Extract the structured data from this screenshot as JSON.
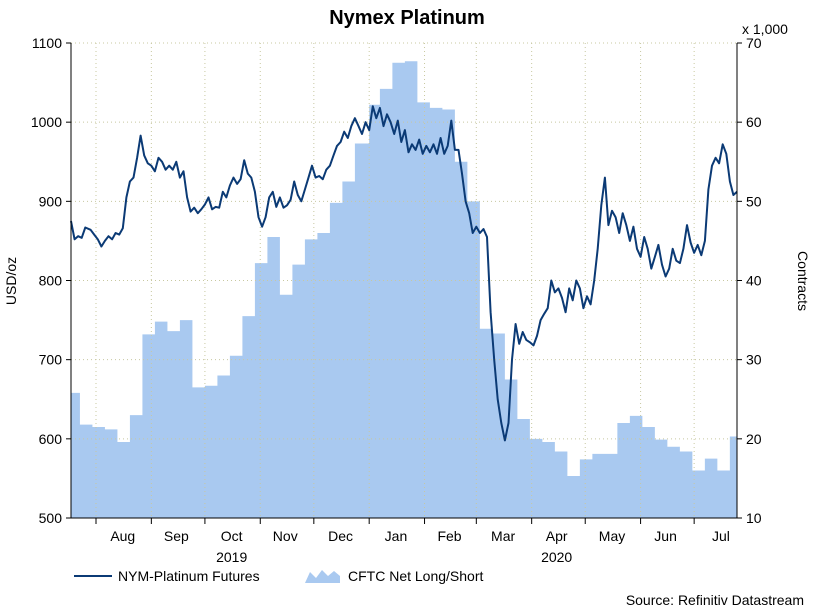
{
  "chart_data": {
    "type": "line",
    "title": "Nymex Platinum",
    "ylabel_left": "USD/oz",
    "ylabel_right": "Contracts",
    "right_multiplier": "x 1,000",
    "ylim_left": [
      500,
      1100
    ],
    "ylim_right": [
      10,
      70
    ],
    "yticks_left": [
      500,
      600,
      700,
      800,
      900,
      1000,
      1100
    ],
    "yticks_right": [
      10,
      20,
      30,
      40,
      50,
      60,
      70
    ],
    "xlim": [
      "2019-07-18",
      "2020-07-25"
    ],
    "month_labels": [
      {
        "label": "Aug",
        "date": "2019-08-16"
      },
      {
        "label": "Sep",
        "date": "2019-09-15"
      },
      {
        "label": "Oct",
        "date": "2019-10-16"
      },
      {
        "label": "Nov",
        "date": "2019-11-15"
      },
      {
        "label": "Dec",
        "date": "2019-12-16"
      },
      {
        "label": "Jan",
        "date": "2020-01-16"
      },
      {
        "label": "Feb",
        "date": "2020-02-15"
      },
      {
        "label": "Mar",
        "date": "2020-03-16"
      },
      {
        "label": "Apr",
        "date": "2020-04-15"
      },
      {
        "label": "May",
        "date": "2020-05-16"
      },
      {
        "label": "Jun",
        "date": "2020-06-15"
      },
      {
        "label": "Jul",
        "date": "2020-07-16"
      }
    ],
    "month_starts": [
      "2019-08-01",
      "2019-09-01",
      "2019-10-01",
      "2019-11-01",
      "2019-12-01",
      "2020-01-01",
      "2020-02-01",
      "2020-03-01",
      "2020-04-01",
      "2020-05-01",
      "2020-06-01",
      "2020-07-01"
    ],
    "year_labels": [
      {
        "label": "2019",
        "date": "2019-10-16"
      },
      {
        "label": "2020",
        "date": "2020-04-15"
      }
    ],
    "grid": true,
    "legend_position": "bottom-left",
    "series": [
      {
        "name": "NYM-Platinum Futures",
        "axis": "left",
        "kind": "line",
        "color": "#0b3a75",
        "points": [
          [
            "2019-07-18",
            875
          ],
          [
            "2019-07-20",
            852
          ],
          [
            "2019-07-22",
            856
          ],
          [
            "2019-07-24",
            854
          ],
          [
            "2019-07-26",
            867
          ],
          [
            "2019-07-29",
            864
          ],
          [
            "2019-07-31",
            858
          ],
          [
            "2019-08-02",
            852
          ],
          [
            "2019-08-04",
            843
          ],
          [
            "2019-08-06",
            850
          ],
          [
            "2019-08-08",
            856
          ],
          [
            "2019-08-10",
            852
          ],
          [
            "2019-08-12",
            860
          ],
          [
            "2019-08-14",
            858
          ],
          [
            "2019-08-16",
            866
          ],
          [
            "2019-08-18",
            905
          ],
          [
            "2019-08-20",
            925
          ],
          [
            "2019-08-22",
            930
          ],
          [
            "2019-08-24",
            955
          ],
          [
            "2019-08-26",
            983
          ],
          [
            "2019-08-28",
            958
          ],
          [
            "2019-08-30",
            948
          ],
          [
            "2019-09-01",
            945
          ],
          [
            "2019-09-03",
            938
          ],
          [
            "2019-09-05",
            955
          ],
          [
            "2019-09-07",
            950
          ],
          [
            "2019-09-09",
            940
          ],
          [
            "2019-09-11",
            945
          ],
          [
            "2019-09-13",
            940
          ],
          [
            "2019-09-15",
            950
          ],
          [
            "2019-09-17",
            930
          ],
          [
            "2019-09-19",
            938
          ],
          [
            "2019-09-21",
            905
          ],
          [
            "2019-09-23",
            887
          ],
          [
            "2019-09-25",
            892
          ],
          [
            "2019-09-27",
            885
          ],
          [
            "2019-09-29",
            890
          ],
          [
            "2019-10-01",
            896
          ],
          [
            "2019-10-03",
            905
          ],
          [
            "2019-10-05",
            890
          ],
          [
            "2019-10-07",
            893
          ],
          [
            "2019-10-09",
            892
          ],
          [
            "2019-10-11",
            912
          ],
          [
            "2019-10-13",
            905
          ],
          [
            "2019-10-15",
            920
          ],
          [
            "2019-10-17",
            930
          ],
          [
            "2019-10-19",
            922
          ],
          [
            "2019-10-21",
            928
          ],
          [
            "2019-10-23",
            952
          ],
          [
            "2019-10-25",
            935
          ],
          [
            "2019-10-27",
            930
          ],
          [
            "2019-10-29",
            912
          ],
          [
            "2019-10-31",
            880
          ],
          [
            "2019-11-02",
            868
          ],
          [
            "2019-11-04",
            880
          ],
          [
            "2019-11-06",
            905
          ],
          [
            "2019-11-08",
            912
          ],
          [
            "2019-11-10",
            893
          ],
          [
            "2019-11-12",
            905
          ],
          [
            "2019-11-14",
            892
          ],
          [
            "2019-11-16",
            895
          ],
          [
            "2019-11-18",
            902
          ],
          [
            "2019-11-20",
            925
          ],
          [
            "2019-11-22",
            908
          ],
          [
            "2019-11-24",
            900
          ],
          [
            "2019-11-26",
            915
          ],
          [
            "2019-11-28",
            930
          ],
          [
            "2019-11-30",
            945
          ],
          [
            "2019-12-02",
            930
          ],
          [
            "2019-12-04",
            932
          ],
          [
            "2019-12-06",
            928
          ],
          [
            "2019-12-08",
            940
          ],
          [
            "2019-12-10",
            945
          ],
          [
            "2019-12-12",
            958
          ],
          [
            "2019-12-14",
            970
          ],
          [
            "2019-12-16",
            975
          ],
          [
            "2019-12-18",
            988
          ],
          [
            "2019-12-20",
            980
          ],
          [
            "2019-12-22",
            995
          ],
          [
            "2019-12-24",
            1005
          ],
          [
            "2019-12-26",
            995
          ],
          [
            "2019-12-28",
            985
          ],
          [
            "2019-12-30",
            1000
          ],
          [
            "2020-01-01",
            990
          ],
          [
            "2020-01-03",
            1020
          ],
          [
            "2020-01-05",
            1005
          ],
          [
            "2020-01-07",
            1018
          ],
          [
            "2020-01-09",
            995
          ],
          [
            "2020-01-11",
            1010
          ],
          [
            "2020-01-13",
            1000
          ],
          [
            "2020-01-15",
            985
          ],
          [
            "2020-01-17",
            1002
          ],
          [
            "2020-01-19",
            975
          ],
          [
            "2020-01-21",
            990
          ],
          [
            "2020-01-23",
            962
          ],
          [
            "2020-01-25",
            972
          ],
          [
            "2020-01-27",
            965
          ],
          [
            "2020-01-29",
            978
          ],
          [
            "2020-01-31",
            960
          ],
          [
            "2020-02-02",
            970
          ],
          [
            "2020-02-04",
            962
          ],
          [
            "2020-02-06",
            972
          ],
          [
            "2020-02-08",
            960
          ],
          [
            "2020-02-10",
            980
          ],
          [
            "2020-02-12",
            960
          ],
          [
            "2020-02-14",
            970
          ],
          [
            "2020-02-16",
            1002
          ],
          [
            "2020-02-18",
            965
          ],
          [
            "2020-02-20",
            965
          ],
          [
            "2020-02-22",
            935
          ],
          [
            "2020-02-24",
            900
          ],
          [
            "2020-02-26",
            885
          ],
          [
            "2020-02-28",
            860
          ],
          [
            "2020-03-01",
            868
          ],
          [
            "2020-03-03",
            860
          ],
          [
            "2020-03-05",
            865
          ],
          [
            "2020-03-07",
            855
          ],
          [
            "2020-03-09",
            760
          ],
          [
            "2020-03-11",
            700
          ],
          [
            "2020-03-13",
            650
          ],
          [
            "2020-03-15",
            620
          ],
          [
            "2020-03-17",
            598
          ],
          [
            "2020-03-19",
            620
          ],
          [
            "2020-03-21",
            700
          ],
          [
            "2020-03-23",
            745
          ],
          [
            "2020-03-25",
            720
          ],
          [
            "2020-03-27",
            735
          ],
          [
            "2020-03-29",
            725
          ],
          [
            "2020-03-31",
            722
          ],
          [
            "2020-04-02",
            718
          ],
          [
            "2020-04-04",
            730
          ],
          [
            "2020-04-06",
            750
          ],
          [
            "2020-04-08",
            758
          ],
          [
            "2020-04-10",
            765
          ],
          [
            "2020-04-12",
            800
          ],
          [
            "2020-04-14",
            785
          ],
          [
            "2020-04-16",
            790
          ],
          [
            "2020-04-18",
            778
          ],
          [
            "2020-04-20",
            760
          ],
          [
            "2020-04-22",
            790
          ],
          [
            "2020-04-24",
            775
          ],
          [
            "2020-04-26",
            800
          ],
          [
            "2020-04-28",
            790
          ],
          [
            "2020-04-30",
            765
          ],
          [
            "2020-05-02",
            780
          ],
          [
            "2020-05-04",
            770
          ],
          [
            "2020-05-06",
            800
          ],
          [
            "2020-05-08",
            840
          ],
          [
            "2020-05-10",
            895
          ],
          [
            "2020-05-12",
            930
          ],
          [
            "2020-05-14",
            870
          ],
          [
            "2020-05-16",
            888
          ],
          [
            "2020-05-18",
            880
          ],
          [
            "2020-05-20",
            860
          ],
          [
            "2020-05-22",
            885
          ],
          [
            "2020-05-24",
            870
          ],
          [
            "2020-05-26",
            850
          ],
          [
            "2020-05-28",
            868
          ],
          [
            "2020-05-30",
            840
          ],
          [
            "2020-06-01",
            830
          ],
          [
            "2020-06-03",
            855
          ],
          [
            "2020-06-05",
            840
          ],
          [
            "2020-06-07",
            815
          ],
          [
            "2020-06-09",
            830
          ],
          [
            "2020-06-11",
            845
          ],
          [
            "2020-06-13",
            820
          ],
          [
            "2020-06-15",
            805
          ],
          [
            "2020-06-17",
            815
          ],
          [
            "2020-06-19",
            840
          ],
          [
            "2020-06-21",
            825
          ],
          [
            "2020-06-23",
            822
          ],
          [
            "2020-06-25",
            840
          ],
          [
            "2020-06-27",
            870
          ],
          [
            "2020-06-29",
            848
          ],
          [
            "2020-07-01",
            835
          ],
          [
            "2020-07-03",
            845
          ],
          [
            "2020-07-05",
            832
          ],
          [
            "2020-07-07",
            850
          ],
          [
            "2020-07-09",
            915
          ],
          [
            "2020-07-11",
            945
          ],
          [
            "2020-07-13",
            955
          ],
          [
            "2020-07-15",
            948
          ],
          [
            "2020-07-17",
            972
          ],
          [
            "2020-07-19",
            960
          ],
          [
            "2020-07-21",
            925
          ],
          [
            "2020-07-23",
            908
          ],
          [
            "2020-07-25",
            912
          ]
        ]
      },
      {
        "name": "CFTC Net Long/Short",
        "axis": "right",
        "kind": "step-area",
        "color": "#a9c9f0",
        "points": [
          [
            "2019-07-18",
            25.8
          ],
          [
            "2019-07-23",
            21.8
          ],
          [
            "2019-07-30",
            21.5
          ],
          [
            "2019-08-06",
            21.2
          ],
          [
            "2019-08-13",
            19.6
          ],
          [
            "2019-08-20",
            23.0
          ],
          [
            "2019-08-27",
            33.2
          ],
          [
            "2019-09-03",
            34.8
          ],
          [
            "2019-09-10",
            33.6
          ],
          [
            "2019-09-17",
            35.0
          ],
          [
            "2019-09-24",
            26.5
          ],
          [
            "2019-10-01",
            26.7
          ],
          [
            "2019-10-08",
            28.0
          ],
          [
            "2019-10-15",
            30.5
          ],
          [
            "2019-10-22",
            35.5
          ],
          [
            "2019-10-29",
            42.2
          ],
          [
            "2019-11-05",
            45.5
          ],
          [
            "2019-11-12",
            38.2
          ],
          [
            "2019-11-19",
            42.0
          ],
          [
            "2019-11-26",
            45.2
          ],
          [
            "2019-12-03",
            46.0
          ],
          [
            "2019-12-10",
            49.8
          ],
          [
            "2019-12-17",
            52.5
          ],
          [
            "2019-12-24",
            57.3
          ],
          [
            "2020-01-01",
            62.2
          ],
          [
            "2020-01-07",
            64.2
          ],
          [
            "2020-01-14",
            67.5
          ],
          [
            "2020-01-21",
            67.7
          ],
          [
            "2020-01-28",
            62.5
          ],
          [
            "2020-02-04",
            61.8
          ],
          [
            "2020-02-11",
            61.6
          ],
          [
            "2020-02-18",
            55.0
          ],
          [
            "2020-02-25",
            50.0
          ],
          [
            "2020-03-03",
            33.9
          ],
          [
            "2020-03-10",
            33.3
          ],
          [
            "2020-03-17",
            27.5
          ],
          [
            "2020-03-24",
            22.5
          ],
          [
            "2020-03-31",
            20.0
          ],
          [
            "2020-04-07",
            19.6
          ],
          [
            "2020-04-14",
            18.4
          ],
          [
            "2020-04-21",
            15.3
          ],
          [
            "2020-04-28",
            17.4
          ],
          [
            "2020-05-05",
            18.1
          ],
          [
            "2020-05-19",
            22.0
          ],
          [
            "2020-05-26",
            22.9
          ],
          [
            "2020-06-02",
            21.5
          ],
          [
            "2020-06-09",
            19.9
          ],
          [
            "2020-06-16",
            19.0
          ],
          [
            "2020-06-23",
            18.4
          ],
          [
            "2020-06-30",
            16.0
          ],
          [
            "2020-07-07",
            17.5
          ],
          [
            "2020-07-14",
            16.0
          ],
          [
            "2020-07-21",
            20.3
          ],
          [
            "2020-07-25",
            20.3
          ]
        ]
      }
    ]
  },
  "footer": {
    "source": "Source: Refinitiv Datastream"
  }
}
